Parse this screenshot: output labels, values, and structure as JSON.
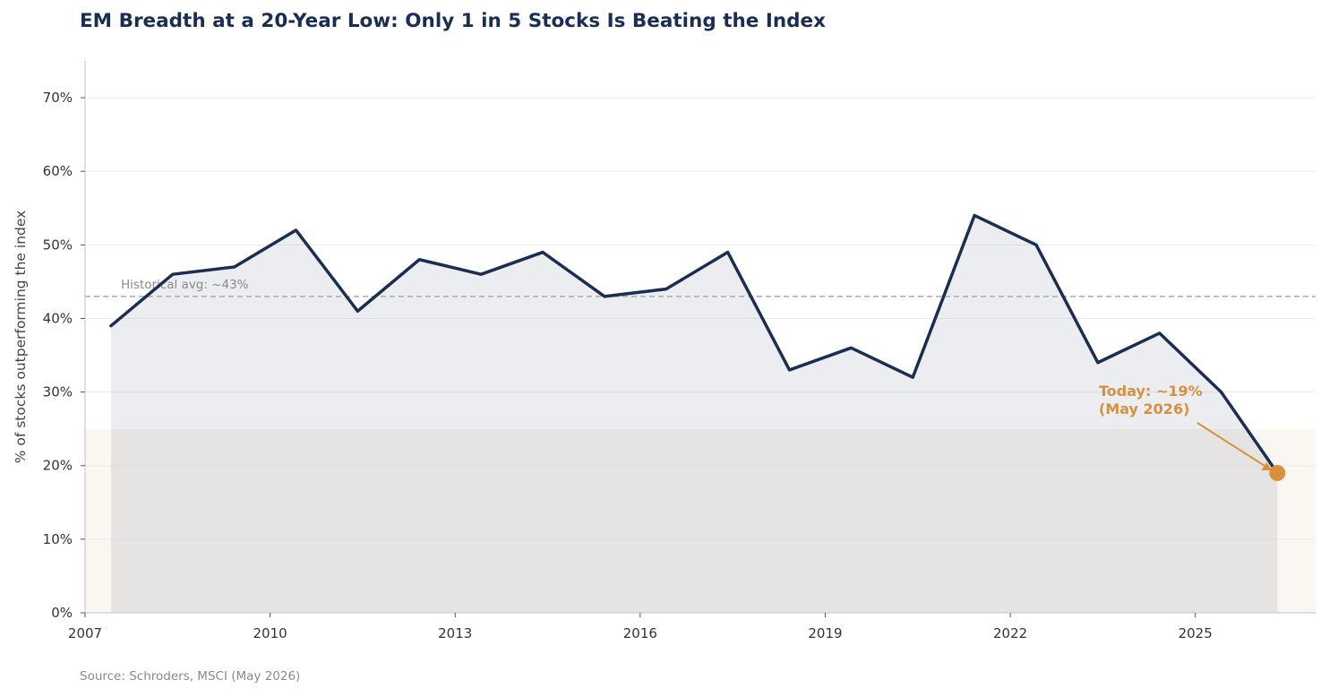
{
  "title": "EM Breadth at a 20-Year Low: Only 1 in 5 Stocks Is Beating the Index",
  "source": "Source: Schroders, MSCI (May 2026)",
  "colors": {
    "line": "#1a2e52",
    "fill": "#eceef2",
    "highlight": "#d9903d",
    "zone": "#faf6f1",
    "avg_line": "#aaaaaa"
  },
  "chart_data": {
    "type": "area",
    "title": "EM Breadth at a 20-Year Low: Only 1 in 5 Stocks Is Beating the Index",
    "xlabel": "",
    "ylabel": "% of stocks outperforming the index",
    "xlim": [
      2007,
      2026.95
    ],
    "ylim": [
      0,
      75
    ],
    "xticks": [
      2007,
      2010,
      2013,
      2016,
      2019,
      2022,
      2025
    ],
    "yticks": [
      0,
      10,
      20,
      30,
      40,
      50,
      60,
      70
    ],
    "ytick_labels": [
      "0%",
      "10%",
      "20%",
      "30%",
      "40%",
      "50%",
      "60%",
      "70%"
    ],
    "grid": true,
    "series": [
      {
        "x": [
          2007.42,
          2008.42,
          2009.42,
          2010.42,
          2011.42,
          2012.42,
          2013.42,
          2014.42,
          2015.42,
          2016.42,
          2017.42,
          2018.42,
          2019.42,
          2020.42,
          2021.42,
          2022.42,
          2023.42,
          2024.42,
          2025.42,
          2026.33
        ],
        "y": [
          39,
          46,
          47,
          52,
          41,
          48,
          46,
          49,
          43,
          44,
          49,
          33,
          36,
          32,
          54,
          50,
          34,
          38,
          30,
          19
        ]
      }
    ],
    "reference_line": {
      "y": 43,
      "label": "Historical avg: ~43%"
    },
    "shaded_zone": {
      "y_from": 0,
      "y_to": 25
    },
    "annotation": {
      "x": 2026.33,
      "y": 19,
      "lines": [
        "Today: ~19%",
        "(May 2026)"
      ]
    }
  }
}
